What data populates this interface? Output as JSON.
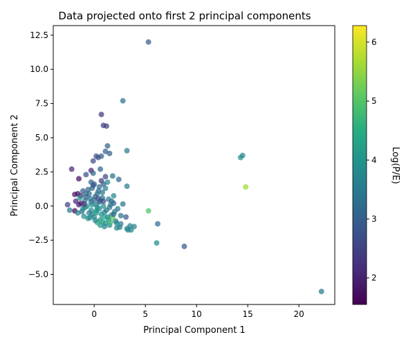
{
  "chart_data": {
    "type": "scatter",
    "title": "Data projected onto first 2 principal components",
    "xlabel": "Principal Component 1",
    "ylabel": "Principal Component 2",
    "xlim": [
      -4,
      23.5
    ],
    "ylim": [
      -7.2,
      13.2
    ],
    "x_ticks": [
      0,
      5,
      10,
      15,
      20
    ],
    "y_ticks": [
      -5.0,
      -2.5,
      0.0,
      2.5,
      5.0,
      7.5,
      10.0,
      12.5
    ],
    "y_tick_labels": [
      "−5.0",
      "−2.5",
      "0.0",
      "2.5",
      "5.0",
      "7.5",
      "10.0",
      "12.5"
    ],
    "grid": false,
    "colorbar": {
      "label": "Log(P/E)",
      "range": [
        1.55,
        6.28
      ],
      "ticks": [
        2,
        3,
        4,
        5,
        6
      ],
      "colormap": "viridis"
    },
    "points": [
      {
        "x": 5.3,
        "y": 12.0,
        "c": 3.0
      },
      {
        "x": 2.8,
        "y": 7.7,
        "c": 3.4
      },
      {
        "x": 0.7,
        "y": 6.7,
        "c": 2.4
      },
      {
        "x": 0.9,
        "y": 5.9,
        "c": 2.4
      },
      {
        "x": 1.2,
        "y": 5.85,
        "c": 2.5
      },
      {
        "x": 1.3,
        "y": 4.4,
        "c": 3.1
      },
      {
        "x": 1.1,
        "y": 4.0,
        "c": 3.0
      },
      {
        "x": 3.2,
        "y": 4.05,
        "c": 3.5
      },
      {
        "x": 1.5,
        "y": 3.85,
        "c": 3.0
      },
      {
        "x": 0.2,
        "y": 3.65,
        "c": 2.7
      },
      {
        "x": 0.7,
        "y": 3.65,
        "c": 3.0
      },
      {
        "x": 0.4,
        "y": 3.55,
        "c": 2.8
      },
      {
        "x": 14.3,
        "y": 3.55,
        "c": 3.9
      },
      {
        "x": 14.5,
        "y": 3.7,
        "c": 3.8
      },
      {
        "x": -0.1,
        "y": 3.3,
        "c": 2.6
      },
      {
        "x": -2.2,
        "y": 2.7,
        "c": 2.1
      },
      {
        "x": -0.3,
        "y": 2.6,
        "c": 2.0
      },
      {
        "x": 0.6,
        "y": 2.7,
        "c": 3.1
      },
      {
        "x": -0.1,
        "y": 2.4,
        "c": 3.2
      },
      {
        "x": -0.8,
        "y": 2.3,
        "c": 2.8
      },
      {
        "x": 1.8,
        "y": 2.2,
        "c": 3.4
      },
      {
        "x": 1.1,
        "y": 2.15,
        "c": 2.6
      },
      {
        "x": 2.4,
        "y": 1.95,
        "c": 3.2
      },
      {
        "x": -1.5,
        "y": 2.0,
        "c": 1.7
      },
      {
        "x": 0.7,
        "y": 1.85,
        "c": 2.4
      },
      {
        "x": 1.3,
        "y": 1.75,
        "c": 3.8
      },
      {
        "x": -0.3,
        "y": 1.75,
        "c": 3.1
      },
      {
        "x": 0.9,
        "y": 1.6,
        "c": 3.0
      },
      {
        "x": 14.8,
        "y": 1.4,
        "c": 5.6
      },
      {
        "x": 3.2,
        "y": 1.45,
        "c": 3.6
      },
      {
        "x": 1.1,
        "y": 1.3,
        "c": 3.6
      },
      {
        "x": -0.1,
        "y": 1.5,
        "c": 2.6
      },
      {
        "x": 0.4,
        "y": 1.1,
        "c": 3.3
      },
      {
        "x": -1.1,
        "y": 1.1,
        "c": 2.9
      },
      {
        "x": -0.5,
        "y": 0.9,
        "c": 3.2
      },
      {
        "x": -1.9,
        "y": 0.85,
        "c": 1.8
      },
      {
        "x": -1.6,
        "y": 0.9,
        "c": 1.8
      },
      {
        "x": -1.3,
        "y": 0.75,
        "c": 2.1
      },
      {
        "x": 0.3,
        "y": 0.9,
        "c": 3.5
      },
      {
        "x": 1.9,
        "y": 0.75,
        "c": 3.8
      },
      {
        "x": -0.8,
        "y": 0.65,
        "c": 3.0
      },
      {
        "x": -1.4,
        "y": 0.6,
        "c": 4.0
      },
      {
        "x": 0.8,
        "y": 0.6,
        "c": 3.3
      },
      {
        "x": 1.4,
        "y": 0.5,
        "c": 3.6
      },
      {
        "x": 0.6,
        "y": 0.4,
        "c": 3.4
      },
      {
        "x": -1.8,
        "y": 0.35,
        "c": 2.1
      },
      {
        "x": 1.7,
        "y": 0.35,
        "c": 3.0
      },
      {
        "x": -0.3,
        "y": 0.3,
        "c": 3.2
      },
      {
        "x": -2.6,
        "y": 0.1,
        "c": 2.5
      },
      {
        "x": -1.5,
        "y": 0.1,
        "c": 2.0
      },
      {
        "x": 2.8,
        "y": 0.15,
        "c": 3.4
      },
      {
        "x": 1.9,
        "y": 0.2,
        "c": 3.2
      },
      {
        "x": 0.2,
        "y": 0.1,
        "c": 3.6
      },
      {
        "x": 0.9,
        "y": 0.0,
        "c": 3.9
      },
      {
        "x": -0.9,
        "y": -0.1,
        "c": 3.7
      },
      {
        "x": 1.5,
        "y": -0.1,
        "c": 3.5
      },
      {
        "x": 0.5,
        "y": -0.2,
        "c": 3.8
      },
      {
        "x": -2.4,
        "y": -0.3,
        "c": 3.5
      },
      {
        "x": -1.9,
        "y": -0.35,
        "c": 1.7
      },
      {
        "x": -1.2,
        "y": -0.4,
        "c": 3.3
      },
      {
        "x": 5.3,
        "y": -0.35,
        "c": 5.0
      },
      {
        "x": 0.2,
        "y": -0.35,
        "c": 3.7
      },
      {
        "x": 1.0,
        "y": -0.45,
        "c": 3.8
      },
      {
        "x": 2.0,
        "y": -0.4,
        "c": 3.6
      },
      {
        "x": -0.5,
        "y": -0.5,
        "c": 3.6
      },
      {
        "x": 1.7,
        "y": -0.65,
        "c": 3.6
      },
      {
        "x": 2.6,
        "y": -0.7,
        "c": 3.4
      },
      {
        "x": -1.0,
        "y": -0.75,
        "c": 3.9
      },
      {
        "x": 0.0,
        "y": -0.8,
        "c": 3.8
      },
      {
        "x": 1.3,
        "y": -0.8,
        "c": 3.7
      },
      {
        "x": 3.1,
        "y": -0.8,
        "c": 2.9
      },
      {
        "x": 1.8,
        "y": -0.85,
        "c": 5.2
      },
      {
        "x": -0.6,
        "y": -0.9,
        "c": 3.7
      },
      {
        "x": 0.6,
        "y": -1.0,
        "c": 3.8
      },
      {
        "x": 2.1,
        "y": -1.1,
        "c": 3.6
      },
      {
        "x": 0.8,
        "y": -1.15,
        "c": 4.6
      },
      {
        "x": 0.3,
        "y": -1.2,
        "c": 4.4
      },
      {
        "x": 1.1,
        "y": -1.25,
        "c": 3.9
      },
      {
        "x": 2.2,
        "y": -1.25,
        "c": 3.6
      },
      {
        "x": 6.2,
        "y": -1.3,
        "c": 3.3
      },
      {
        "x": 2.6,
        "y": -1.3,
        "c": 3.6
      },
      {
        "x": 0.6,
        "y": -1.4,
        "c": 4.1
      },
      {
        "x": 1.5,
        "y": -1.4,
        "c": 3.8
      },
      {
        "x": 3.5,
        "y": -1.45,
        "c": 3.6
      },
      {
        "x": 3.9,
        "y": -1.5,
        "c": 3.6
      },
      {
        "x": 1.0,
        "y": -1.5,
        "c": 3.7
      },
      {
        "x": 2.2,
        "y": -1.6,
        "c": 3.7
      },
      {
        "x": 3.2,
        "y": -1.65,
        "c": 3.6
      },
      {
        "x": 3.3,
        "y": -1.75,
        "c": 3.8
      },
      {
        "x": 3.6,
        "y": -1.75,
        "c": 3.7
      },
      {
        "x": 6.1,
        "y": -2.7,
        "c": 3.9
      },
      {
        "x": 8.8,
        "y": -2.95,
        "c": 2.9
      },
      {
        "x": 22.2,
        "y": -6.25,
        "c": 3.5
      },
      {
        "x": -0.2,
        "y": 1.3,
        "c": 3.3
      },
      {
        "x": -0.6,
        "y": 1.2,
        "c": 3.1
      },
      {
        "x": 0.1,
        "y": 0.7,
        "c": 3.0
      },
      {
        "x": -0.4,
        "y": 0.55,
        "c": 3.4
      },
      {
        "x": 0.0,
        "y": 0.45,
        "c": 3.2
      },
      {
        "x": -0.9,
        "y": 0.4,
        "c": 3.5
      },
      {
        "x": 0.5,
        "y": 0.3,
        "c": 3.1
      },
      {
        "x": -0.2,
        "y": 0.1,
        "c": 3.8
      },
      {
        "x": -0.7,
        "y": 0.0,
        "c": 3.9
      },
      {
        "x": 0.3,
        "y": -0.1,
        "c": 3.9
      },
      {
        "x": -1.1,
        "y": -0.2,
        "c": 3.8
      },
      {
        "x": -0.3,
        "y": -0.3,
        "c": 3.9
      },
      {
        "x": 0.7,
        "y": -0.6,
        "c": 3.8
      },
      {
        "x": -0.2,
        "y": -0.6,
        "c": 3.6
      },
      {
        "x": 1.2,
        "y": -0.3,
        "c": 3.4
      },
      {
        "x": 2.3,
        "y": -0.2,
        "c": 3.5
      },
      {
        "x": -1.3,
        "y": 0.2,
        "c": 2.0
      },
      {
        "x": -0.8,
        "y": 0.9,
        "c": 3.3
      },
      {
        "x": 0.8,
        "y": 1.0,
        "c": 3.4
      },
      {
        "x": 1.6,
        "y": 0.1,
        "c": 3.5
      },
      {
        "x": 1.4,
        "y": -1.0,
        "c": 4.0
      },
      {
        "x": 0.1,
        "y": -1.05,
        "c": 3.7
      },
      {
        "x": -0.4,
        "y": -0.85,
        "c": 3.8
      },
      {
        "x": -1.6,
        "y": -0.5,
        "c": 3.6
      },
      {
        "x": 0.4,
        "y": 0.55,
        "c": 2.7
      },
      {
        "x": 0.0,
        "y": 1.6,
        "c": 2.9
      },
      {
        "x": 0.5,
        "y": 1.4,
        "c": 3.2
      },
      {
        "x": 1.9,
        "y": -0.6,
        "c": 3.3
      },
      {
        "x": 2.5,
        "y": -1.55,
        "c": 3.6
      },
      {
        "x": 0.9,
        "y": 0.35,
        "c": 2.6
      },
      {
        "x": -1.0,
        "y": 0.15,
        "c": 2.2
      },
      {
        "x": 1.0,
        "y": -0.8,
        "c": 4.3
      },
      {
        "x": 1.6,
        "y": -1.2,
        "c": 4.8
      },
      {
        "x": 0.2,
        "y": -0.5,
        "c": 4.2
      }
    ]
  }
}
